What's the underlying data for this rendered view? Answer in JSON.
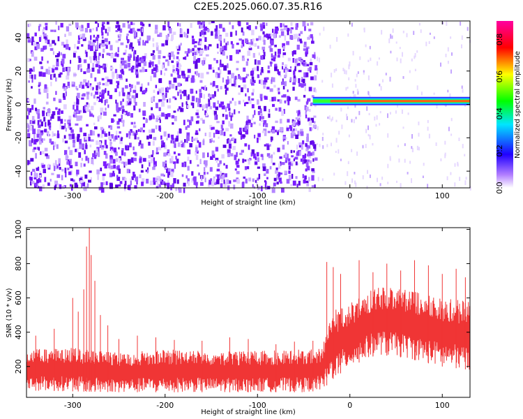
{
  "title": "C2E5.2025.060.07.35.R16",
  "chart_data": [
    {
      "type": "heatmap",
      "xlabel": "Height of straight line (km)",
      "ylabel": "Frequency (Hz)",
      "xlim": [
        -350,
        130
      ],
      "ylim": [
        -50,
        50
      ],
      "xticks": [
        -300,
        -200,
        -100,
        0,
        100
      ],
      "yticks": [
        -40,
        -20,
        0,
        20,
        40
      ],
      "noise_region": [
        -350,
        -38
      ],
      "signal_line": {
        "frequency": 2,
        "from": -40,
        "to": 130
      },
      "colorbar": {
        "label": "Normalized spectral amplitude",
        "range": [
          0.0,
          0.9
        ],
        "ticks": [
          "0.0",
          "0.2",
          "0.4",
          "0.6",
          "0.8"
        ]
      }
    },
    {
      "type": "line",
      "color": "#f03535",
      "xlabel": "Height of straight line (km)",
      "ylabel": "SNR (10 * v/v)",
      "xlim": [
        -350,
        130
      ],
      "ylim": [
        20,
        1010
      ],
      "xticks": [
        -300,
        -200,
        -100,
        0,
        100
      ],
      "yticks": [
        200,
        400,
        600,
        800,
        1000
      ],
      "envelope": [
        {
          "x": -350,
          "low": 60,
          "high": 300
        },
        {
          "x": -300,
          "low": 55,
          "high": 310
        },
        {
          "x": -250,
          "low": 50,
          "high": 280
        },
        {
          "x": -200,
          "low": 50,
          "high": 300
        },
        {
          "x": -150,
          "low": 50,
          "high": 290
        },
        {
          "x": -100,
          "low": 50,
          "high": 290
        },
        {
          "x": -50,
          "low": 50,
          "high": 300
        },
        {
          "x": -30,
          "low": 60,
          "high": 310
        },
        {
          "x": -20,
          "low": 120,
          "high": 520
        },
        {
          "x": 0,
          "low": 200,
          "high": 570
        },
        {
          "x": 30,
          "low": 270,
          "high": 680
        },
        {
          "x": 60,
          "low": 250,
          "high": 650
        },
        {
          "x": 100,
          "low": 200,
          "high": 600
        },
        {
          "x": 130,
          "low": 180,
          "high": 580
        }
      ],
      "spikes": [
        {
          "x": -282,
          "y": 1010
        },
        {
          "x": -285,
          "y": 900
        },
        {
          "x": -280,
          "y": 850
        },
        {
          "x": -288,
          "y": 650
        },
        {
          "x": -276,
          "y": 700
        },
        {
          "x": -300,
          "y": 600
        },
        {
          "x": -270,
          "y": 500
        },
        {
          "x": -262,
          "y": 440
        },
        {
          "x": -294,
          "y": 520
        },
        {
          "x": -320,
          "y": 420
        },
        {
          "x": -340,
          "y": 380
        },
        {
          "x": -250,
          "y": 360
        },
        {
          "x": -230,
          "y": 380
        },
        {
          "x": -210,
          "y": 370
        },
        {
          "x": -190,
          "y": 355
        },
        {
          "x": -160,
          "y": 350
        },
        {
          "x": -130,
          "y": 370
        },
        {
          "x": -110,
          "y": 360
        },
        {
          "x": -80,
          "y": 330
        },
        {
          "x": -60,
          "y": 345
        },
        {
          "x": -40,
          "y": 350
        },
        {
          "x": -25,
          "y": 810
        },
        {
          "x": -18,
          "y": 780
        },
        {
          "x": -10,
          "y": 740
        },
        {
          "x": 10,
          "y": 820
        },
        {
          "x": 25,
          "y": 750
        },
        {
          "x": 40,
          "y": 800
        },
        {
          "x": 55,
          "y": 760
        },
        {
          "x": 70,
          "y": 820
        },
        {
          "x": 85,
          "y": 790
        },
        {
          "x": 100,
          "y": 740
        },
        {
          "x": 115,
          "y": 770
        },
        {
          "x": 125,
          "y": 720
        }
      ]
    }
  ]
}
